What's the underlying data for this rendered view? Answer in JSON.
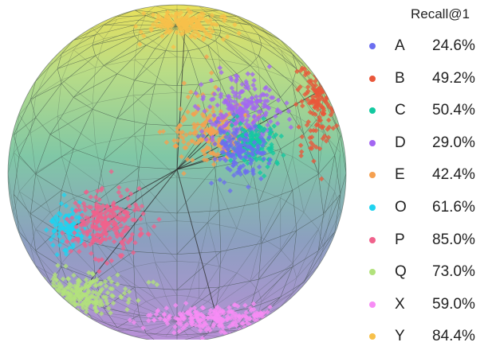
{
  "chart_data": {
    "type": "scatter",
    "title": "",
    "legend_title": "Recall@1",
    "legend_position": "right",
    "series": [
      {
        "name": "A",
        "value": "24.6%",
        "color": "#6b6ef0"
      },
      {
        "name": "B",
        "value": "49.2%",
        "color": "#e9573a"
      },
      {
        "name": "C",
        "value": "50.4%",
        "color": "#12c9a0"
      },
      {
        "name": "D",
        "value": "29.0%",
        "color": "#a366f2"
      },
      {
        "name": "E",
        "value": "42.4%",
        "color": "#f5a050"
      },
      {
        "name": "O",
        "value": "61.6%",
        "color": "#1fd3f0"
      },
      {
        "name": "P",
        "value": "85.0%",
        "color": "#f0628c"
      },
      {
        "name": "Q",
        "value": "73.0%",
        "color": "#b2e27c"
      },
      {
        "name": "X",
        "value": "59.0%",
        "color": "#f78cf5"
      },
      {
        "name": "Y",
        "value": "84.4%",
        "color": "#f7c04a"
      }
    ]
  }
}
